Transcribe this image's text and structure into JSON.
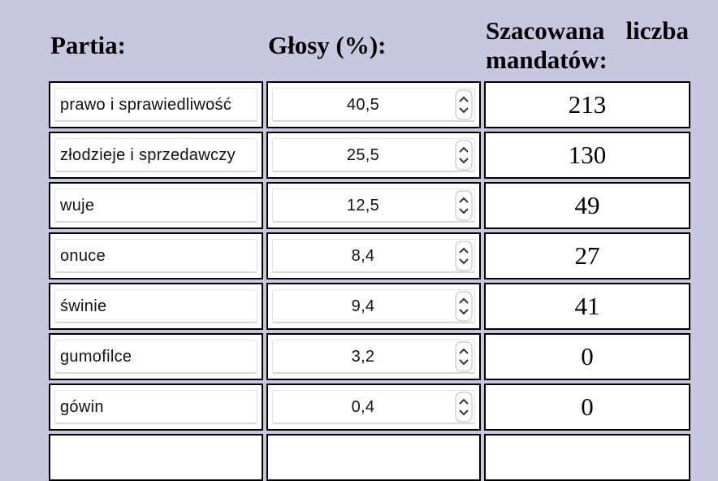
{
  "header": {
    "party": "Partia:",
    "votes": "Głosy (%):",
    "seats": "Szacowana liczba mandatów:"
  },
  "table": {
    "rows": [
      [
        "prawo i sprawiedliwość",
        "40,5",
        213
      ],
      [
        "złodzieje i sprzedawczy",
        "25,5",
        130
      ],
      [
        "wuje",
        "12,5",
        49
      ],
      [
        "onuce",
        "8,4",
        27
      ],
      [
        "świnie",
        "9,4",
        41
      ],
      [
        "gumofilce",
        "3,2",
        0
      ],
      [
        "gówin",
        "0,4",
        0
      ]
    ]
  }
}
